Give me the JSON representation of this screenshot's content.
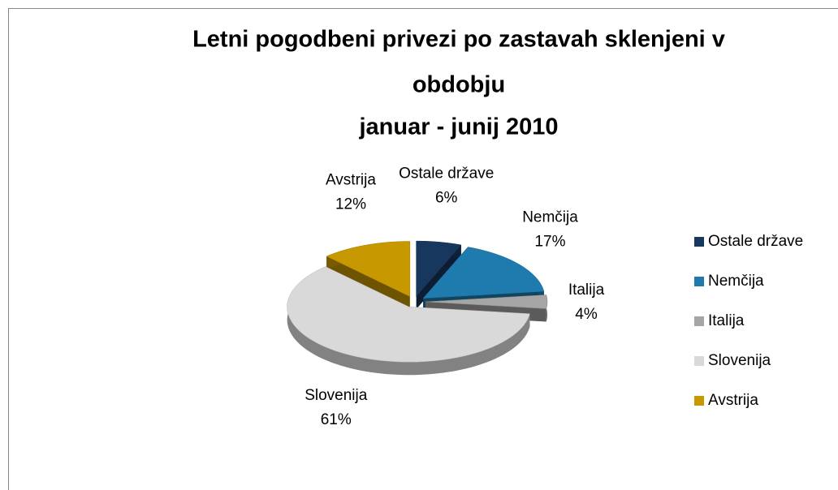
{
  "chart_data": {
    "type": "pie",
    "title": [
      "Letni pogodbeni privezi po zastavah  sklenjeni v",
      "obdobju",
      "januar - junij 2010"
    ],
    "categories": [
      "Ostale države",
      "Nemčija",
      "Italija",
      "Slovenija",
      "Avstrija"
    ],
    "values": [
      6,
      17,
      4,
      61,
      12
    ],
    "value_labels": [
      "6%",
      "17%",
      "4%",
      "61%",
      "12%"
    ],
    "colors": [
      "#17375e",
      "#1f7bad",
      "#a5a5a5",
      "#d9d9d9",
      "#c89800"
    ],
    "legend": "right"
  }
}
